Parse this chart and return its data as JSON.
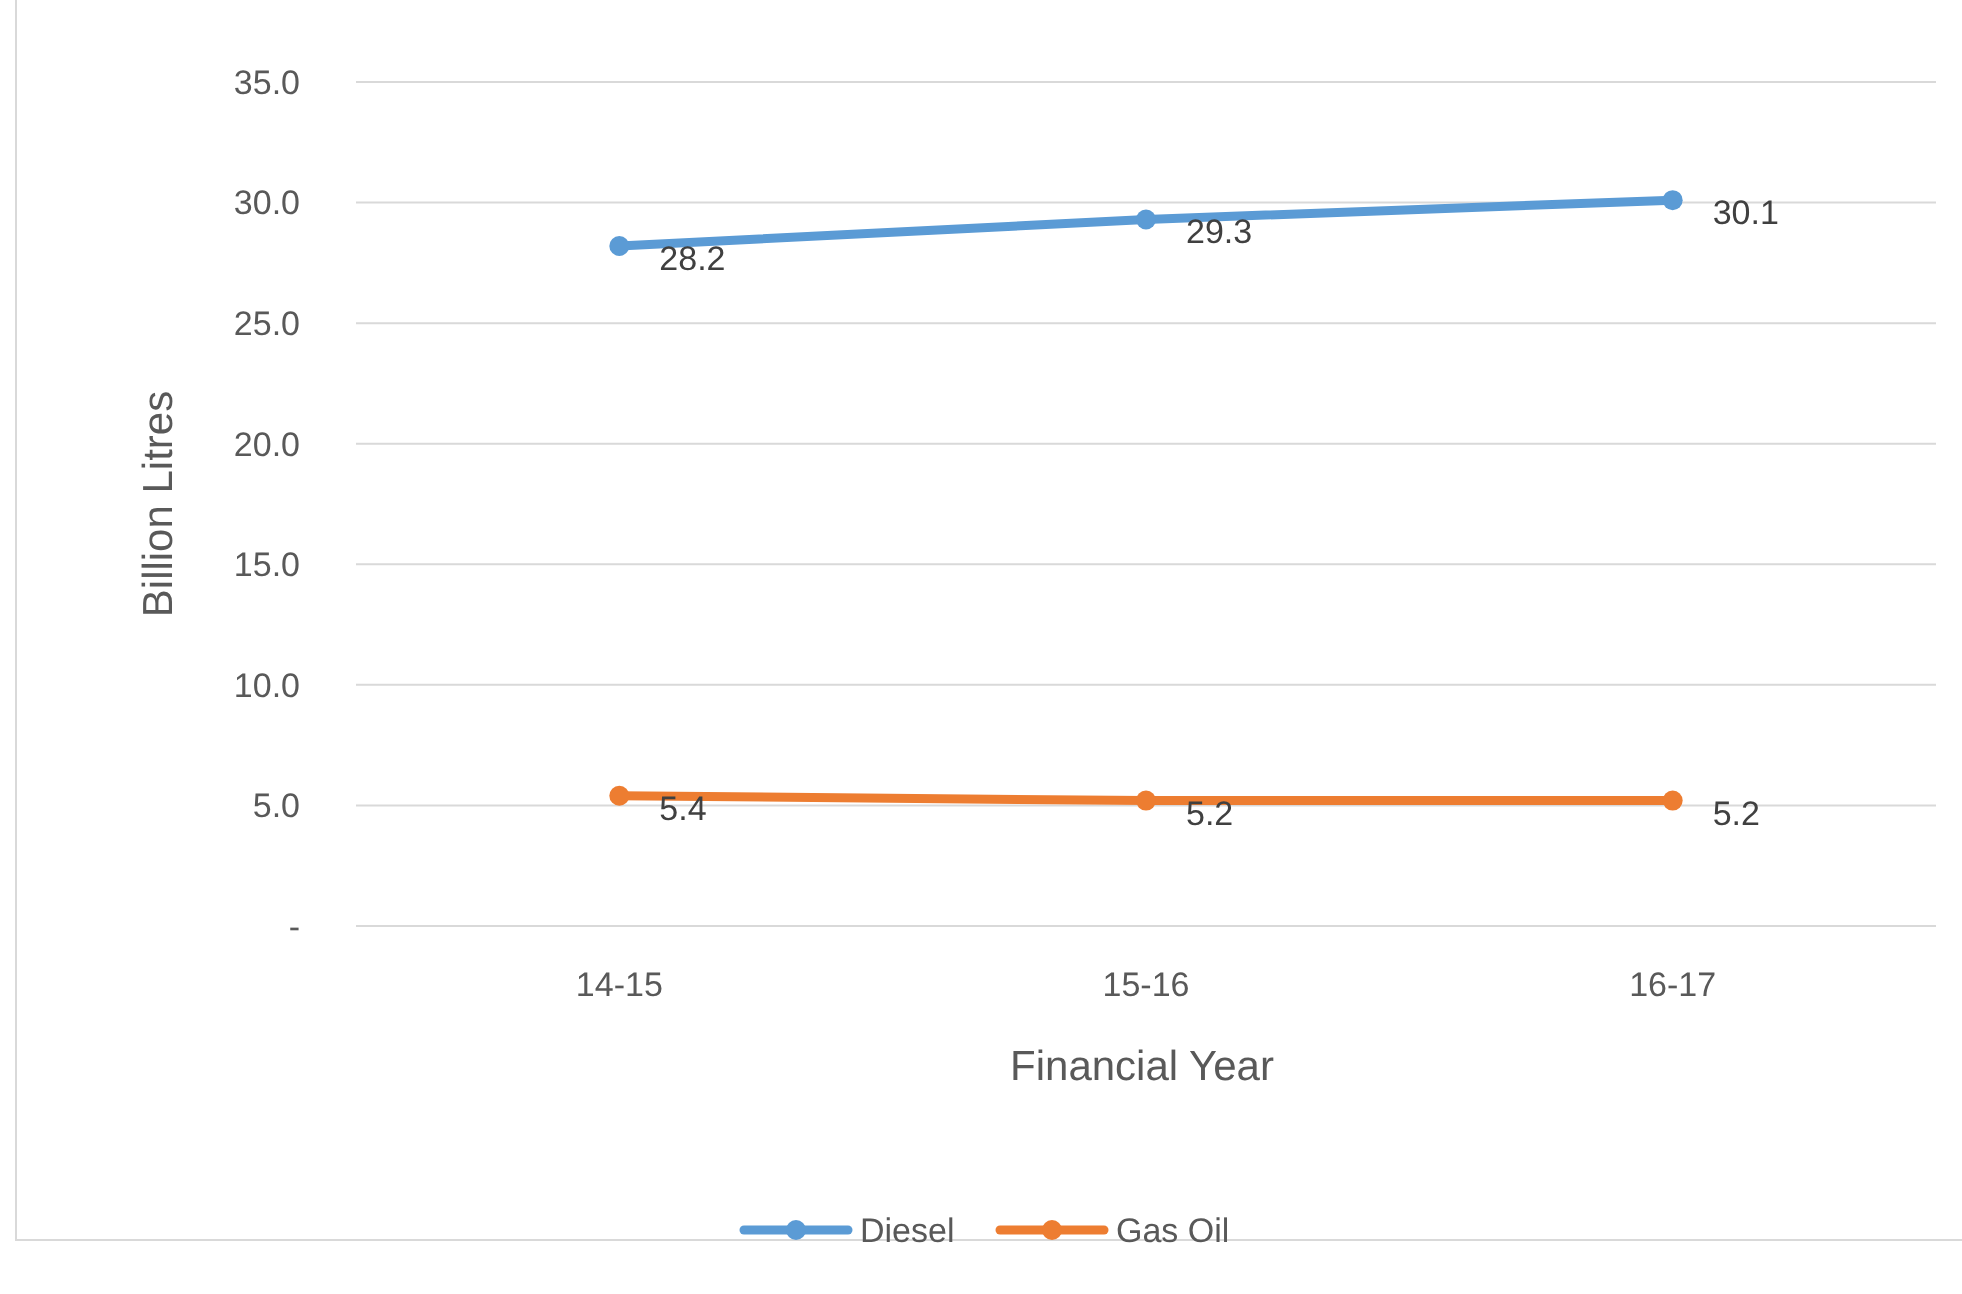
{
  "chart_data": {
    "type": "line",
    "xlabel": "Financial Year",
    "ylabel": "Billion Litres",
    "categories": [
      "14-15",
      "15-16",
      "16-17"
    ],
    "series": [
      {
        "name": "Diesel",
        "color": "#5b9bd5",
        "values": [
          28.2,
          29.3,
          30.1
        ]
      },
      {
        "name": "Gas Oil",
        "color": "#ed7d31",
        "values": [
          5.4,
          5.2,
          5.2
        ]
      }
    ],
    "ylim": [
      0,
      35
    ],
    "yticks": [
      {
        "value": 0,
        "label": "-"
      },
      {
        "value": 5,
        "label": "5.0"
      },
      {
        "value": 10,
        "label": "10.0"
      },
      {
        "value": 15,
        "label": "15.0"
      },
      {
        "value": 20,
        "label": "20.0"
      },
      {
        "value": 25,
        "label": "25.0"
      },
      {
        "value": 30,
        "label": "30.0"
      },
      {
        "value": 35,
        "label": "35.0"
      }
    ],
    "grid": "y",
    "legend": "bottom",
    "marker": "circle",
    "line_style": "solid",
    "data_labels": true
  }
}
